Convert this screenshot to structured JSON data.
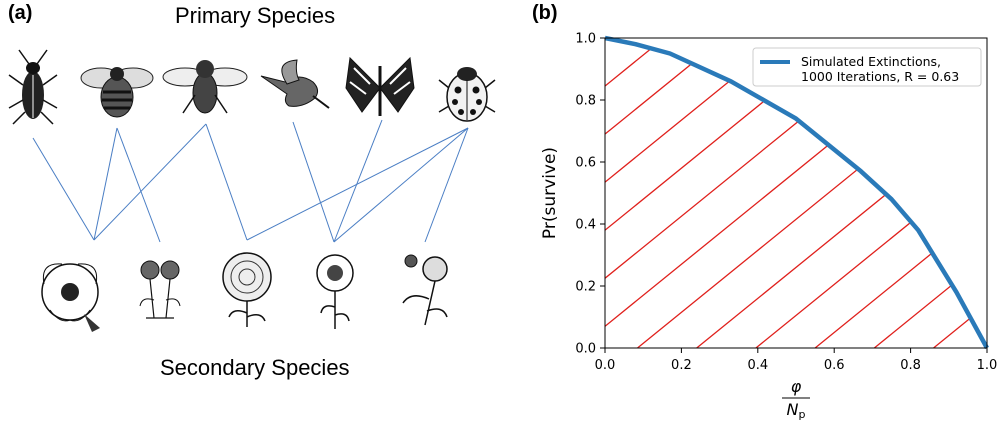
{
  "panel_a": {
    "label": "(a)",
    "top_title": "Primary Species",
    "bottom_title": "Secondary Species",
    "primary_species": [
      {
        "icon": "beetle-icon"
      },
      {
        "icon": "bumblebee-icon"
      },
      {
        "icon": "fly-icon"
      },
      {
        "icon": "hummingbird-icon"
      },
      {
        "icon": "butterfly-icon"
      },
      {
        "icon": "ladybug-icon"
      }
    ],
    "secondary_species": [
      {
        "icon": "wild-rose-icon"
      },
      {
        "icon": "daisy-cluster-icon"
      },
      {
        "icon": "dahlia-icon"
      },
      {
        "icon": "sunflower-icon"
      },
      {
        "icon": "rose-branch-icon"
      }
    ],
    "links": [
      [
        0,
        0
      ],
      [
        1,
        0
      ],
      [
        1,
        1
      ],
      [
        2,
        0
      ],
      [
        2,
        2
      ],
      [
        3,
        3
      ],
      [
        4,
        3
      ],
      [
        5,
        2
      ],
      [
        5,
        3
      ],
      [
        5,
        4
      ]
    ],
    "link_color": "#4a7ec4"
  },
  "chart_data": {
    "type": "line",
    "panel_label": "(b)",
    "xlabel_num": "φ",
    "xlabel_den": "N",
    "xlabel_den_sub": "p",
    "ylabel": "Pr(survive)",
    "xlim": [
      0,
      1
    ],
    "ylim": [
      0,
      1
    ],
    "xticks": [
      "0.0",
      "0.2",
      "0.4",
      "0.6",
      "0.8",
      "1.0"
    ],
    "yticks": [
      "0.0",
      "0.2",
      "0.4",
      "0.6",
      "0.8",
      "1.0"
    ],
    "grid": false,
    "legend": {
      "placement": "top-right",
      "line1": "Simulated Extinctions,",
      "line2": "1000 Iterations, R = 0.63"
    },
    "series": [
      {
        "name": "Simulated Extinctions, 1000 Iterations, R = 0.63",
        "color": "#2a7ab9",
        "x": [
          0.0,
          0.08,
          0.17,
          0.33,
          0.5,
          0.58,
          0.67,
          0.75,
          0.82,
          0.84,
          0.92,
          1.0
        ],
        "y": [
          1.0,
          0.98,
          0.95,
          0.86,
          0.74,
          0.66,
          0.57,
          0.48,
          0.38,
          0.34,
          0.18,
          0.0
        ]
      }
    ],
    "hatch": {
      "color": "#e0201c"
    }
  }
}
